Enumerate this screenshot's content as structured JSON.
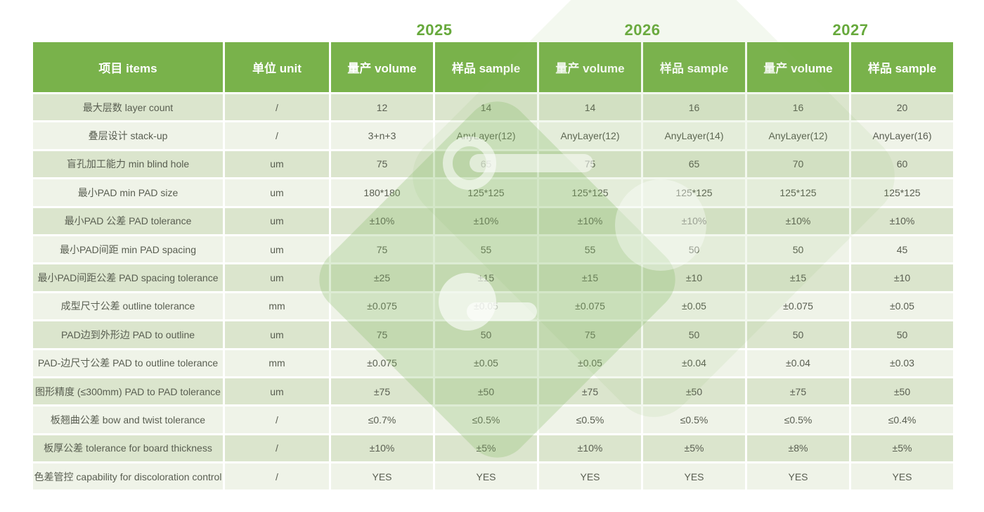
{
  "years": [
    "2025",
    "2026",
    "2027"
  ],
  "table": {
    "columns": [
      "项目 items",
      "单位  unit",
      "量产  volume",
      "样品 sample",
      "量产 volume",
      "样品 sample",
      "量产 volume",
      "样品  sample"
    ],
    "rows": [
      {
        "item": "最大层数  layer count",
        "unit": "/",
        "values": [
          "12",
          "14",
          "14",
          "16",
          "16",
          "20"
        ]
      },
      {
        "item": "叠层设计 stack-up",
        "unit": "/",
        "values": [
          "3+n+3",
          "AnyLayer(12)",
          "AnyLayer(12)",
          "AnyLayer(14)",
          "AnyLayer(12)",
          "AnyLayer(16)"
        ]
      },
      {
        "item": "盲孔加工能力 min blind hole",
        "unit": "um",
        "values": [
          "75",
          "65",
          "75",
          "65",
          "70",
          "60"
        ]
      },
      {
        "item": "最小PAD min PAD size",
        "unit": "um",
        "values": [
          "180*180",
          "125*125",
          "125*125",
          "125*125",
          "125*125",
          "125*125"
        ]
      },
      {
        "item": "最小PAD 公差 PAD tolerance",
        "unit": "um",
        "values": [
          "±10%",
          "±10%",
          "±10%",
          "±10%",
          "±10%",
          "±10%"
        ]
      },
      {
        "item": "最小PAD间距  min PAD spacing",
        "unit": "um",
        "values": [
          "75",
          "55",
          "55",
          "50",
          "50",
          "45"
        ]
      },
      {
        "item": "最小PAD间距公差  PAD spacing  tolerance",
        "unit": "um",
        "values": [
          "±25",
          "±15",
          "±15",
          "±10",
          "±15",
          "±10"
        ]
      },
      {
        "item": "成型尺寸公差 outline tolerance",
        "unit": "mm",
        "values": [
          "±0.075",
          "±0.05",
          "±0.075",
          "±0.05",
          "±0.075",
          "±0.05"
        ]
      },
      {
        "item": "PAD边到外形边 PAD to  outline",
        "unit": "um",
        "values": [
          "75",
          "50",
          "75",
          "50",
          "50",
          "50"
        ]
      },
      {
        "item": "PAD-边尺寸公差 PAD to  outline tolerance",
        "unit": "mm",
        "values": [
          "±0.075",
          "±0.05",
          "±0.05",
          "±0.04",
          "±0.04",
          "±0.03"
        ]
      },
      {
        "item": "图形精度 (≤300mm)  PAD to  PAD tolerance",
        "unit": "um",
        "values": [
          "±75",
          "±50",
          "±75",
          "±50",
          "±75",
          "±50"
        ]
      },
      {
        "item": "板翘曲公差 bow and twist tolerance",
        "unit": "/",
        "values": [
          "≤0.7%",
          "≤0.5%",
          "≤0.5%",
          "≤0.5%",
          "≤0.5%",
          "≤0.4%"
        ]
      },
      {
        "item": "板厚公差  tolerance for board thickness",
        "unit": "/",
        "values": [
          "±10%",
          "±5%",
          "±10%",
          "±5%",
          "±8%",
          "±5%"
        ]
      },
      {
        "item": "色差管控  capability for discoloration  control",
        "unit": "/",
        "values": [
          "YES",
          "YES",
          "YES",
          "YES",
          "YES",
          "YES"
        ]
      }
    ]
  },
  "colors": {
    "header_bg": "#79b24b",
    "year_text": "#67a93c",
    "row_dark": "#dbe5cd",
    "row_light": "#eff3e8",
    "cell_text": "#595e51",
    "watermark_green": "#86bb66"
  }
}
